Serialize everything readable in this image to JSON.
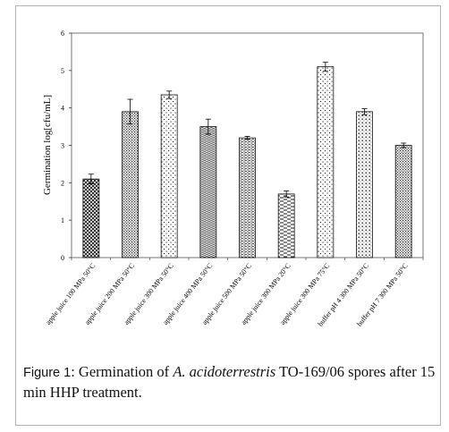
{
  "caption": {
    "label": "Figure 1",
    "text_before": ": Germination of ",
    "species": "A. acidoterrestris",
    "text_after": " TO-169/06 spores after 15 min HHP treatment."
  },
  "chart_data": {
    "type": "bar",
    "title": "",
    "xlabel": "",
    "ylabel": "Germination  log[cfu/mL]",
    "ylim": [
      0,
      6
    ],
    "yticks": [
      0,
      1,
      2,
      3,
      4,
      5,
      6
    ],
    "grid": false,
    "legend": "none",
    "categories": [
      "apple juice 100 MPa 50°C",
      "apple juice 200 MPa 50°C",
      "apple juice 300 MPa 50°C",
      "apple juice 400 MPa 50°C",
      "apple juice 500 MPa 50°C",
      "apple juice 300 MPa 20°C",
      "apple juice 300 MPa 75°C",
      "buffer pH 4 300 MPa 50°C",
      "buffer pH 7 300 MPa 50°C"
    ],
    "values": [
      2.1,
      3.9,
      4.35,
      3.5,
      3.2,
      1.7,
      5.1,
      3.9,
      3.0
    ],
    "errors": [
      0.13,
      0.33,
      0.1,
      0.2,
      0.04,
      0.08,
      0.12,
      0.08,
      0.06
    ],
    "patterns": [
      "crosshatch",
      "dots-fine",
      "dots-sparse",
      "wave-grid",
      "hlines-dense",
      "dashes",
      "dots-sparse",
      "dots-grid",
      "dots-fine"
    ]
  }
}
